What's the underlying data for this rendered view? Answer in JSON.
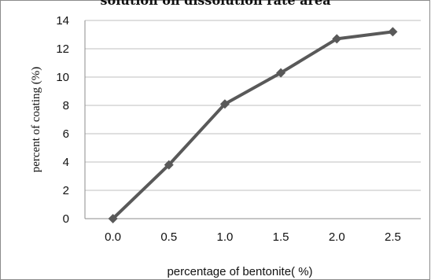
{
  "chart_data": {
    "type": "line",
    "title": "solution on dissolution rate area",
    "xlabel": "percentage of bentonite( %)",
    "ylabel": "percent of coating (%)",
    "categories": [
      "0.0",
      "0.5",
      "1.0",
      "1.5",
      "2.0",
      "2.5"
    ],
    "series": [
      {
        "values": [
          0,
          3.8,
          8.1,
          10.3,
          12.7,
          13.2
        ]
      }
    ],
    "ylim": [
      0,
      14
    ],
    "yticks": [
      "0",
      "2",
      "4",
      "6",
      "8",
      "10",
      "12",
      "14"
    ],
    "grid": true,
    "legend": "none",
    "line_color": "#595959",
    "marker": "diamond"
  }
}
